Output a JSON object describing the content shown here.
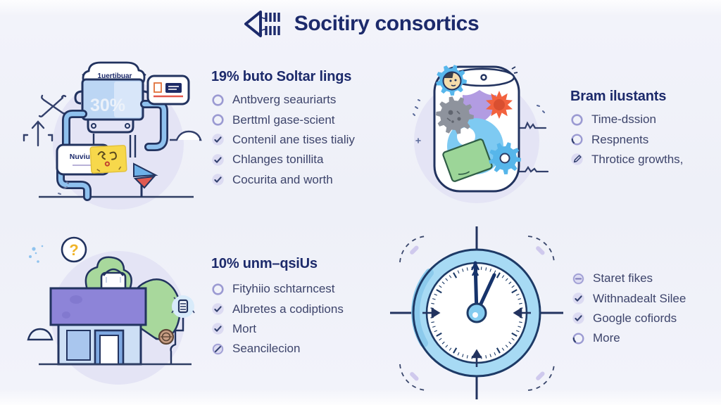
{
  "header": {
    "title": "Socitiry consortics"
  },
  "quadrants": {
    "top_left": {
      "heading": "19% buto Soltar lings",
      "items": [
        {
          "bullet": "circle",
          "text": "Antbverg seauriarts"
        },
        {
          "bullet": "circle",
          "text": "Berttml gase-scient"
        },
        {
          "bullet": "check",
          "text": "Contenil ane tises tialiy"
        },
        {
          "bullet": "check",
          "text": "Chlanges tonillita"
        },
        {
          "bullet": "check",
          "text": "Cocurita and worth"
        }
      ],
      "illustration": {
        "name": "dispenser-machine",
        "tank_label": "1uertibuar",
        "tank_value": "30%",
        "card_label": "Nuvium"
      }
    },
    "top_right": {
      "heading": "Bram ilustants",
      "items": [
        {
          "bullet": "circle",
          "text": "Time-dssion"
        },
        {
          "bullet": "half",
          "text": "Respnents"
        },
        {
          "bullet": "pencil",
          "text": "Throtice growths,"
        }
      ],
      "illustration": {
        "name": "gear-jar"
      }
    },
    "bottom_left": {
      "heading": "10% unm–qsiUs",
      "items": [
        {
          "bullet": "circle",
          "text": "Fityhiio schtarncest"
        },
        {
          "bullet": "check",
          "text": "Albretes a codiptions"
        },
        {
          "bullet": "check",
          "text": "Mort"
        },
        {
          "bullet": "slash",
          "text": "Seancilecion"
        }
      ],
      "illustration": {
        "name": "storefront-building"
      }
    },
    "bottom_right": {
      "items": [
        {
          "bullet": "dash",
          "text": "Staret fikes"
        },
        {
          "bullet": "check",
          "text": "Withnadealt Silee"
        },
        {
          "bullet": "check",
          "text": "Google cofiords"
        },
        {
          "bullet": "half",
          "text": "More"
        }
      ],
      "illustration": {
        "name": "clock"
      }
    }
  },
  "colors": {
    "navy": "#1c2a6b",
    "text": "#3d446b",
    "lavender_bg": "#e4e4f5",
    "machine_blue": "#bcd6f4",
    "pipe_blue": "#8fc1ee",
    "sticky_yellow": "#f7d84b",
    "purple": "#8d84d8",
    "green": "#9ed69a",
    "orange_gear": "#f2623e",
    "blue_gear": "#57b6ea",
    "clock_ring": "#a7daf4",
    "flag_red": "#e05a50"
  }
}
